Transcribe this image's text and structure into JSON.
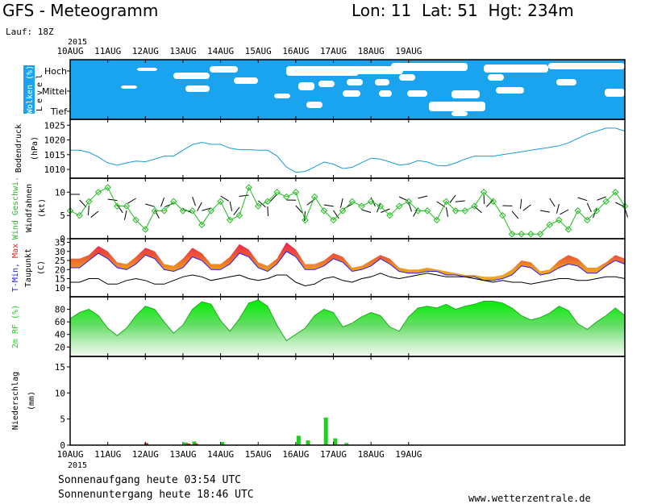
{
  "header": {
    "title": "GFS - Meteogramm",
    "location": "Lon: 11  Lat: 51  Hgt: 234m",
    "run": "Lauf: 18Z"
  },
  "footer": {
    "sunrise": "Sonnenaufgang heute 03:54 UTC",
    "sunset": "Sonnenuntergang heute 18:46 UTC",
    "site": "www.wetterzentrale.de"
  },
  "colors": {
    "cloud_bg": "#1aa3ee",
    "pressure": "#1a9ad8",
    "wind": "#22bb22",
    "tmin": "#2222ee",
    "tmax": "#ee2222",
    "rh": "#11dd11",
    "precip": "#22cc22"
  },
  "chart_data": {
    "type": "meteogram",
    "x_start": "2015-08-10 00Z",
    "x_end": "2015-08-19 18Z",
    "year_label": "2015",
    "x_ticks": [
      "10AUG",
      "11AUG",
      "12AUG",
      "13AUG",
      "14AUG",
      "15AUG",
      "16AUG",
      "17AUG",
      "18AUG",
      "19AUG"
    ],
    "panels": [
      {
        "id": "clouds",
        "ylabel_main": "Wolken (%)",
        "ylabel_sub": "Level",
        "levels": [
          "Hoch",
          "Mittel",
          "Tief"
        ]
      },
      {
        "id": "pressure",
        "ylabel_main": "Bodendruck",
        "ylabel_sub": "(hPa)",
        "y_ticks": [
          1010,
          1015,
          1020,
          1025
        ],
        "ylim": [
          1007,
          1027
        ],
        "values_6h": [
          1016.5,
          1016.5,
          1015.8,
          1014.2,
          1012.2,
          1011.4,
          1012.2,
          1012.8,
          1012.6,
          1013.5,
          1014.5,
          1014.5,
          1016.5,
          1018.4,
          1019.2,
          1018.5,
          1018.5,
          1017.2,
          1016.7,
          1016.7,
          1016.5,
          1016.5,
          1014.6,
          1010.8,
          1009.0,
          1009.3,
          1010.8,
          1012.5,
          1011.8,
          1010.3,
          1010.7,
          1012.3,
          1013.8,
          1013.5,
          1012.5,
          1011.5,
          1011.8,
          1013.0,
          1012.5,
          1011.3,
          1011.2,
          1012.2,
          1013.5,
          1014.5,
          1014.5,
          1014.5,
          1015.0,
          1015.5,
          1016.0,
          1016.5,
          1017.0,
          1017.5,
          1018.0,
          1019.0,
          1020.5,
          1022.0,
          1023.0,
          1024.0,
          1024.0,
          1023.0
        ]
      },
      {
        "id": "wind",
        "ylabel_main": "Wind Geschwi.",
        "ylabel_sub": "Windfahnen",
        "ylabel_unit": "(kt)",
        "y_ticks": [
          0,
          5,
          10
        ],
        "ylim": [
          0,
          13
        ],
        "values_6h": [
          6,
          5,
          8,
          10,
          11,
          7,
          7,
          4,
          2,
          6,
          6,
          8,
          6,
          6,
          3,
          6,
          8,
          4,
          5,
          11,
          7,
          8,
          10,
          9,
          10,
          4,
          9,
          6,
          4,
          6,
          8,
          7,
          8,
          7,
          5,
          7,
          8,
          6,
          6,
          4,
          8,
          6,
          6,
          7,
          10,
          8,
          5,
          1,
          1,
          1,
          1,
          3,
          4,
          2,
          6,
          4,
          6,
          8,
          10,
          7
        ]
      },
      {
        "id": "temperature",
        "ylabel_main": "T-Min, Max",
        "ylabel_sub": "Taupunkt",
        "ylabel_unit": "(C)",
        "y_ticks": [
          10,
          15,
          20,
          25,
          30,
          35
        ],
        "ylim": [
          5,
          37
        ],
        "legend": [
          "T-Min",
          "Max"
        ],
        "tmin_6h": [
          21,
          21,
          25,
          29,
          26,
          21,
          20,
          23,
          28,
          26,
          20,
          19,
          21,
          27,
          25,
          20,
          20,
          23,
          29,
          27,
          21,
          19,
          23,
          30,
          27,
          20,
          20,
          22,
          26,
          24,
          19,
          20,
          22,
          26,
          23,
          19,
          18,
          18,
          19,
          19,
          17,
          17,
          16,
          16,
          14,
          14,
          15,
          17,
          22,
          21,
          17,
          18,
          21,
          23,
          22,
          18,
          18,
          22,
          25,
          23
        ],
        "tmax_6h": [
          26,
          26,
          28,
          33,
          30,
          24,
          23,
          27,
          32,
          30,
          23,
          22,
          26,
          32,
          29,
          23,
          23,
          27,
          34,
          31,
          24,
          22,
          26,
          35,
          31,
          23,
          23,
          25,
          29,
          27,
          21,
          22,
          25,
          28,
          26,
          21,
          20,
          20,
          21,
          20,
          19,
          18,
          17,
          17,
          16,
          16,
          17,
          20,
          25,
          24,
          19,
          20,
          25,
          28,
          26,
          21,
          21,
          24,
          28,
          26
        ],
        "dewpoint_6h": [
          13,
          13,
          15,
          15,
          12,
          12,
          14,
          15,
          14,
          12,
          12,
          14,
          16,
          17,
          16,
          14,
          15,
          16,
          17,
          15,
          14,
          15,
          17,
          17,
          13,
          11,
          12,
          15,
          16,
          14,
          13,
          15,
          16,
          18,
          16,
          15,
          16,
          17,
          18,
          17,
          16,
          16,
          16,
          15,
          14,
          13,
          14,
          13,
          13,
          12,
          13,
          14,
          15,
          15,
          14,
          14,
          15,
          16,
          16,
          15
        ]
      },
      {
        "id": "humidity",
        "ylabel_main": "2m RF (%)",
        "y_ticks": [
          20,
          40,
          60,
          80
        ],
        "ylim": [
          5,
          100
        ],
        "values_6h": [
          65,
          75,
          80,
          70,
          50,
          38,
          50,
          70,
          85,
          80,
          60,
          42,
          55,
          80,
          92,
          88,
          62,
          45,
          65,
          90,
          95,
          85,
          55,
          30,
          40,
          50,
          70,
          80,
          75,
          52,
          58,
          68,
          75,
          70,
          52,
          45,
          68,
          82,
          85,
          82,
          88,
          80,
          85,
          88,
          93,
          93,
          90,
          82,
          70,
          63,
          67,
          74,
          85,
          78,
          57,
          48,
          60,
          70,
          82,
          70
        ]
      },
      {
        "id": "precip",
        "ylabel_main": "Niederschlag",
        "ylabel_sub": "(mm)",
        "y_ticks": [
          0,
          5,
          10,
          15
        ],
        "ylim": [
          0,
          17
        ],
        "bars": [
          {
            "t": 8.1,
            "v": 0.4,
            "color": "#ee2222"
          },
          {
            "t": 12.3,
            "v": 0.5,
            "color": "#22cc22"
          },
          {
            "t": 12.6,
            "v": 0.3,
            "color": "#ee2222"
          },
          {
            "t": 13.2,
            "v": 0.7,
            "color": "#22cc22"
          },
          {
            "t": 13.4,
            "v": 0.3,
            "color": "#ee2222"
          },
          {
            "t": 16.2,
            "v": 0.6,
            "color": "#22cc22"
          },
          {
            "t": 24.3,
            "v": 1.8,
            "color": "#22cc22"
          },
          {
            "t": 25.3,
            "v": 0.9,
            "color": "#22cc22"
          },
          {
            "t": 27.2,
            "v": 5.3,
            "color": "#22cc22"
          },
          {
            "t": 28.2,
            "v": 1.3,
            "color": "#22cc22"
          },
          {
            "t": 29.4,
            "v": 0.4,
            "color": "#22cc22"
          }
        ]
      }
    ]
  }
}
